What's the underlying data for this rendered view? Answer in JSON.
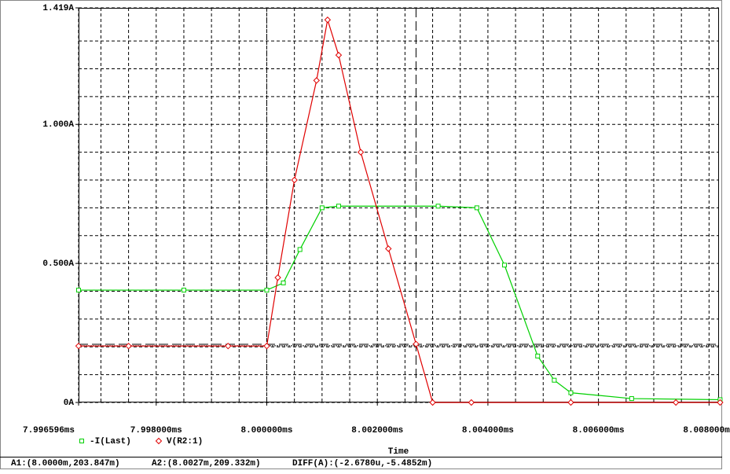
{
  "chart_data": {
    "type": "line",
    "xlabel": "Time",
    "xlim": [
      7.996596,
      8.00818
    ],
    "ylim": [
      0,
      1.419
    ],
    "xticks": [
      {
        "value": 7.996596,
        "label": "7.996596ms"
      },
      {
        "value": 7.998,
        "label": "7.998000ms"
      },
      {
        "value": 8.0,
        "label": "8.000000ms"
      },
      {
        "value": 8.002,
        "label": "8.002000ms"
      },
      {
        "value": 8.004,
        "label": "8.004000ms"
      },
      {
        "value": 8.006,
        "label": "8.006000ms"
      },
      {
        "value": 8.008,
        "label": "8.008000ms"
      }
    ],
    "yticks": [
      {
        "value": 0,
        "label": "0A"
      },
      {
        "value": 0.5,
        "label": "0.500A"
      },
      {
        "value": 1.0,
        "label": "1.000A"
      },
      {
        "value": 1.419,
        "label": "1.419A"
      }
    ],
    "xminor": [
      7.997,
      7.9975,
      7.9985,
      7.999,
      7.9995,
      8.0005,
      8.001,
      8.0015,
      8.0025,
      8.003,
      8.0035,
      8.0045,
      8.005,
      8.0055,
      8.0065,
      8.007,
      8.0075
    ],
    "yminor": [
      0.1,
      0.2,
      0.3,
      0.4,
      0.6,
      0.7,
      0.8,
      0.9,
      1.1,
      1.2,
      1.3
    ],
    "grid": true,
    "series": [
      {
        "name": "-I(Last)",
        "color": "#00d000",
        "marker": "square",
        "x": [
          7.996596,
          7.9985,
          8.0,
          8.0003,
          8.0006,
          8.001,
          8.0013,
          8.0031,
          8.0038,
          8.0043,
          8.0049,
          8.0052,
          8.0055,
          8.0066,
          8.0082
        ],
        "values": [
          0.404,
          0.404,
          0.404,
          0.43,
          0.55,
          0.7,
          0.706,
          0.706,
          0.7,
          0.494,
          0.167,
          0.08,
          0.035,
          0.014,
          0.01
        ]
      },
      {
        "name": "V(R2:1)",
        "color": "#e00000",
        "marker": "diamond",
        "x": [
          7.996596,
          7.9975,
          7.9993,
          8.0,
          8.0002,
          8.0005,
          8.0009,
          8.0011,
          8.0013,
          8.0017,
          8.0022,
          8.0027,
          8.003,
          8.0037,
          8.0055,
          8.0074,
          8.0082
        ],
        "values": [
          0.203,
          0.203,
          0.203,
          0.203,
          0.449,
          0.8,
          1.158,
          1.376,
          1.249,
          0.9,
          0.553,
          0.21,
          0,
          0,
          0,
          0,
          0
        ]
      }
    ],
    "cursors": [
      {
        "x": 8.0,
        "y": 0.203847
      },
      {
        "x": 8.0027,
        "y": 0.209332
      }
    ],
    "status": [
      "A1:(8.0000m,203.847m)",
      "A2:(8.0027m,209.332m)",
      "DIFF(A):(-2.6780u,-5.4852m)"
    ]
  }
}
